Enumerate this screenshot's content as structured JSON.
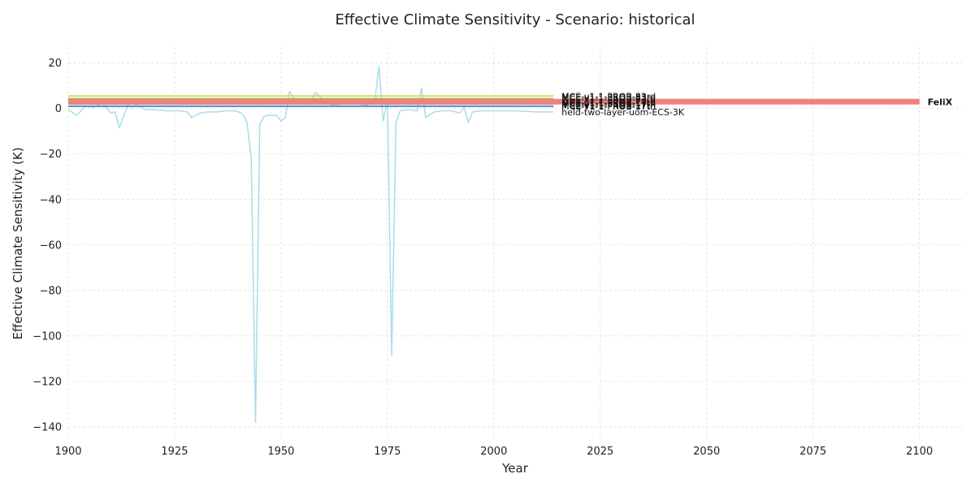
{
  "chart_data": {
    "type": "line",
    "title": "Effective Climate Sensitivity - Scenario: historical",
    "xlabel": "Year",
    "ylabel": "Effective Climate Sensitivity (K)",
    "xlim": [
      1900,
      2110
    ],
    "ylim": [
      -145,
      27
    ],
    "xticks": [
      1900,
      1925,
      1950,
      1975,
      2000,
      2025,
      2050,
      2075,
      2100
    ],
    "yticks": [
      20,
      0,
      -20,
      -40,
      -60,
      -80,
      -100,
      -120,
      -140
    ],
    "grid": true,
    "series": [
      {
        "name": "MCE-v1-1-PROB-83rd",
        "color": "#d8d86a",
        "width": 2,
        "x": [
          1900,
          2014
        ],
        "y": [
          5.5,
          5.5
        ]
      },
      {
        "name": "",
        "color": "#9acd32",
        "width": 2,
        "x": [
          1900,
          2014
        ],
        "y": [
          4.3,
          4.3
        ]
      },
      {
        "name": "",
        "color": "#c7a3d9",
        "width": 2,
        "x": [
          1900,
          2014
        ],
        "y": [
          3.6,
          3.6
        ]
      },
      {
        "name": "",
        "color": "#b03060",
        "width": 3,
        "x": [
          1900,
          2014
        ],
        "y": [
          3.0,
          3.0
        ]
      },
      {
        "name": "",
        "color": "#5a3d6e",
        "width": 3,
        "x": [
          1900,
          2014
        ],
        "y": [
          2.6,
          2.6
        ]
      },
      {
        "name": "",
        "color": "#7d3c70",
        "width": 3,
        "x": [
          1900,
          2014
        ],
        "y": [
          2.3,
          2.3
        ]
      },
      {
        "name": "FeliX",
        "color": "#f08080",
        "width": 7,
        "bold_label": true,
        "x": [
          1900,
          2100
        ],
        "y": [
          3.0,
          3.0
        ]
      },
      {
        "name": "MCE-v1-1-PROB-17th",
        "color": "#4a90c8",
        "width": 2,
        "x": [
          1900,
          2014
        ],
        "y": [
          1.0,
          1.0
        ]
      },
      {
        "name": "held-two-layer-uom-ECS-3K",
        "color": "#a8dde8",
        "width": 1.5,
        "x": [
          1900,
          1902,
          1904,
          1906,
          1908,
          1910,
          1911,
          1912,
          1914,
          1915,
          1916,
          1918,
          1920,
          1923,
          1926,
          1928,
          1929,
          1931,
          1933,
          1935,
          1937,
          1939,
          1940,
          1941,
          1942,
          1943,
          1944,
          1945,
          1946,
          1947,
          1948,
          1949,
          1950,
          1951,
          1952,
          1953,
          1955,
          1957,
          1958,
          1959,
          1960,
          1962,
          1965,
          1968,
          1970,
          1972,
          1973,
          1974,
          1975,
          1976,
          1977,
          1978,
          1980,
          1982,
          1983,
          1984,
          1986,
          1988,
          1990,
          1992,
          1993,
          1994,
          1995,
          1997,
          2000,
          2005,
          2010,
          2014
        ],
        "y": [
          -0.5,
          -3,
          1,
          0.5,
          2.5,
          -2,
          -1.5,
          -8.5,
          1.5,
          0.5,
          1.5,
          -0.5,
          -0.5,
          -1,
          -1,
          -1.5,
          -4,
          -2,
          -1.5,
          -1.5,
          -1,
          -1,
          -1.5,
          -2.5,
          -6,
          -22,
          -138,
          -7,
          -3.5,
          -3,
          -3,
          -3,
          -5.5,
          -4,
          7.5,
          4.5,
          3.5,
          3.5,
          7,
          5.5,
          3,
          1.5,
          1,
          1,
          1.5,
          3,
          18.5,
          -5.5,
          4,
          -108.5,
          -6,
          -1,
          -0.5,
          -1,
          9,
          -4,
          -1.5,
          -1,
          -1,
          -2,
          0.5,
          -6,
          -1.5,
          -1,
          -1,
          -1,
          -1.5,
          -1.5
        ]
      }
    ],
    "overlap_labels": [
      {
        "text": "MCE-v1-1-PROB-83rd",
        "y": 4.8
      },
      {
        "text": "MCE-v1-1-PROB-83rd",
        "y": 4.2
      },
      {
        "text": "MCE-v1-1-PROB-17th",
        "y": 2.8
      },
      {
        "text": "MCE-v1-1-PROB-17th",
        "y": 2.3
      },
      {
        "text": "MCE-v1-1-PROB-17th",
        "y": 1.8
      },
      {
        "text": "MCE-v1-1-PROB-17th",
        "y": 1.3
      }
    ]
  }
}
